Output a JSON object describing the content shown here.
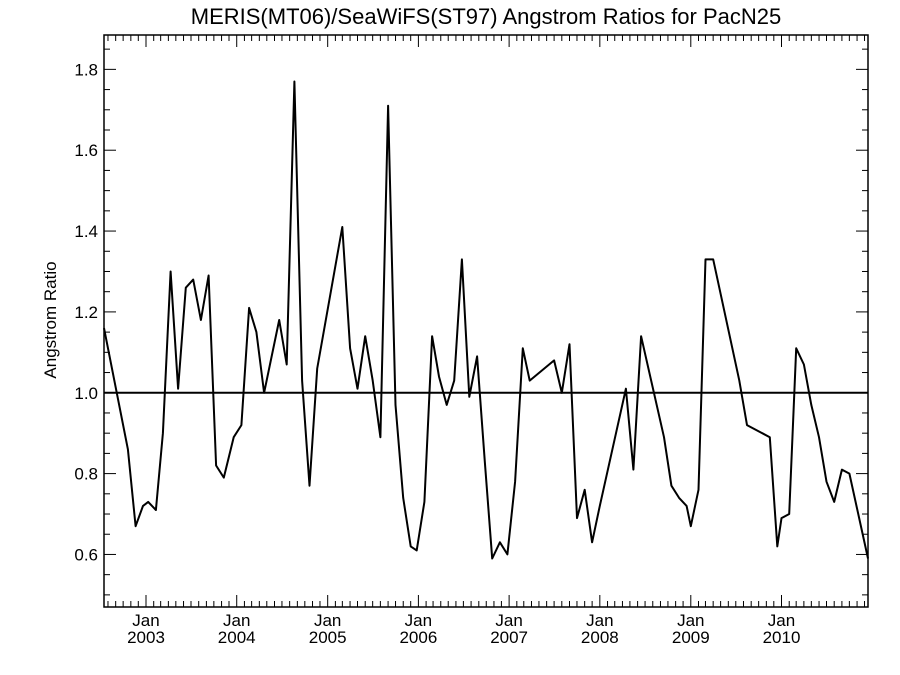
{
  "chart_data": {
    "type": "line",
    "title": "MERIS(MT06)/SeaWiFS(ST97)  Angstrom Ratios for PacN25",
    "xlabel": "",
    "ylabel": "Angstrom Ratio",
    "xlim": [
      "2002-07-16",
      "2010-12-15"
    ],
    "ylim": [
      0.47,
      1.885
    ],
    "y_ticks": [
      "0.6",
      "0.8",
      "1.0",
      "1.2",
      "1.4",
      "1.6",
      "1.8"
    ],
    "x_ticks": [
      {
        "month": "Jan",
        "year": "2003",
        "date": "2003-01-01"
      },
      {
        "month": "Jan",
        "year": "2004",
        "date": "2004-01-01"
      },
      {
        "month": "Jan",
        "year": "2005",
        "date": "2005-01-01"
      },
      {
        "month": "Jan",
        "year": "2006",
        "date": "2006-01-01"
      },
      {
        "month": "Jan",
        "year": "2007",
        "date": "2007-01-01"
      },
      {
        "month": "Jan",
        "year": "2008",
        "date": "2008-01-01"
      },
      {
        "month": "Jan",
        "year": "2009",
        "date": "2009-01-01"
      },
      {
        "month": "Jan",
        "year": "2010",
        "date": "2010-01-01"
      }
    ],
    "reference_line": 1.0,
    "grid": false,
    "series": [
      {
        "color": "#000000",
        "points": [
          [
            "2002-07-16",
            1.16
          ],
          [
            "2002-10-20",
            0.86
          ],
          [
            "2002-11-20",
            0.67
          ],
          [
            "2002-12-20",
            0.72
          ],
          [
            "2003-01-10",
            0.73
          ],
          [
            "2003-02-10",
            0.71
          ],
          [
            "2003-03-10",
            0.9
          ],
          [
            "2003-04-10",
            1.3
          ],
          [
            "2003-05-10",
            1.01
          ],
          [
            "2003-06-10",
            1.26
          ],
          [
            "2003-07-10",
            1.28
          ],
          [
            "2003-08-10",
            1.18
          ],
          [
            "2003-09-10",
            1.29
          ],
          [
            "2003-10-10",
            0.82
          ],
          [
            "2003-11-10",
            0.79
          ],
          [
            "2003-12-20",
            0.89
          ],
          [
            "2004-01-20",
            0.92
          ],
          [
            "2004-02-20",
            1.21
          ],
          [
            "2004-03-20",
            1.15
          ],
          [
            "2004-04-20",
            1.0
          ],
          [
            "2004-06-20",
            1.18
          ],
          [
            "2004-07-20",
            1.07
          ],
          [
            "2004-08-20",
            1.77
          ],
          [
            "2004-09-20",
            1.03
          ],
          [
            "2004-10-20",
            0.77
          ],
          [
            "2004-11-20",
            1.06
          ],
          [
            "2005-03-01",
            1.41
          ],
          [
            "2005-04-01",
            1.11
          ],
          [
            "2005-05-01",
            1.01
          ],
          [
            "2005-06-01",
            1.14
          ],
          [
            "2005-07-01",
            1.03
          ],
          [
            "2005-08-01",
            0.89
          ],
          [
            "2005-09-01",
            1.71
          ],
          [
            "2005-10-01",
            0.97
          ],
          [
            "2005-11-01",
            0.74
          ],
          [
            "2005-12-01",
            0.62
          ],
          [
            "2005-12-25",
            0.61
          ],
          [
            "2006-01-25",
            0.73
          ],
          [
            "2006-02-25",
            1.14
          ],
          [
            "2006-03-25",
            1.04
          ],
          [
            "2006-04-25",
            0.97
          ],
          [
            "2006-05-25",
            1.03
          ],
          [
            "2006-06-25",
            1.33
          ],
          [
            "2006-07-25",
            0.99
          ],
          [
            "2006-08-25",
            1.09
          ],
          [
            "2006-09-25",
            0.83
          ],
          [
            "2006-10-25",
            0.59
          ],
          [
            "2006-11-25",
            0.63
          ],
          [
            "2006-12-25",
            0.6
          ],
          [
            "2007-01-25",
            0.78
          ],
          [
            "2007-02-25",
            1.11
          ],
          [
            "2007-03-25",
            1.03
          ],
          [
            "2007-07-01",
            1.08
          ],
          [
            "2007-08-01",
            1.0
          ],
          [
            "2007-09-01",
            1.12
          ],
          [
            "2007-10-01",
            0.69
          ],
          [
            "2007-11-01",
            0.76
          ],
          [
            "2007-12-01",
            0.63
          ],
          [
            "2008-01-01",
            0.72
          ],
          [
            "2008-04-15",
            1.01
          ],
          [
            "2008-05-15",
            0.81
          ],
          [
            "2008-06-15",
            1.14
          ],
          [
            "2008-09-15",
            0.89
          ],
          [
            "2008-10-15",
            0.77
          ],
          [
            "2008-11-15",
            0.74
          ],
          [
            "2008-12-15",
            0.72
          ],
          [
            "2009-01-01",
            0.67
          ],
          [
            "2009-02-01",
            0.76
          ],
          [
            "2009-03-01",
            1.33
          ],
          [
            "2009-04-01",
            1.33
          ],
          [
            "2009-07-15",
            1.03
          ],
          [
            "2009-08-15",
            0.92
          ],
          [
            "2009-11-15",
            0.89
          ],
          [
            "2009-12-15",
            0.62
          ],
          [
            "2010-01-01",
            0.69
          ],
          [
            "2010-02-01",
            0.7
          ],
          [
            "2010-03-01",
            1.11
          ],
          [
            "2010-04-01",
            1.07
          ],
          [
            "2010-05-01",
            0.97
          ],
          [
            "2010-06-01",
            0.89
          ],
          [
            "2010-07-01",
            0.78
          ],
          [
            "2010-08-01",
            0.73
          ],
          [
            "2010-09-01",
            0.81
          ],
          [
            "2010-10-01",
            0.8
          ],
          [
            "2010-12-15",
            0.59
          ]
        ]
      }
    ]
  }
}
